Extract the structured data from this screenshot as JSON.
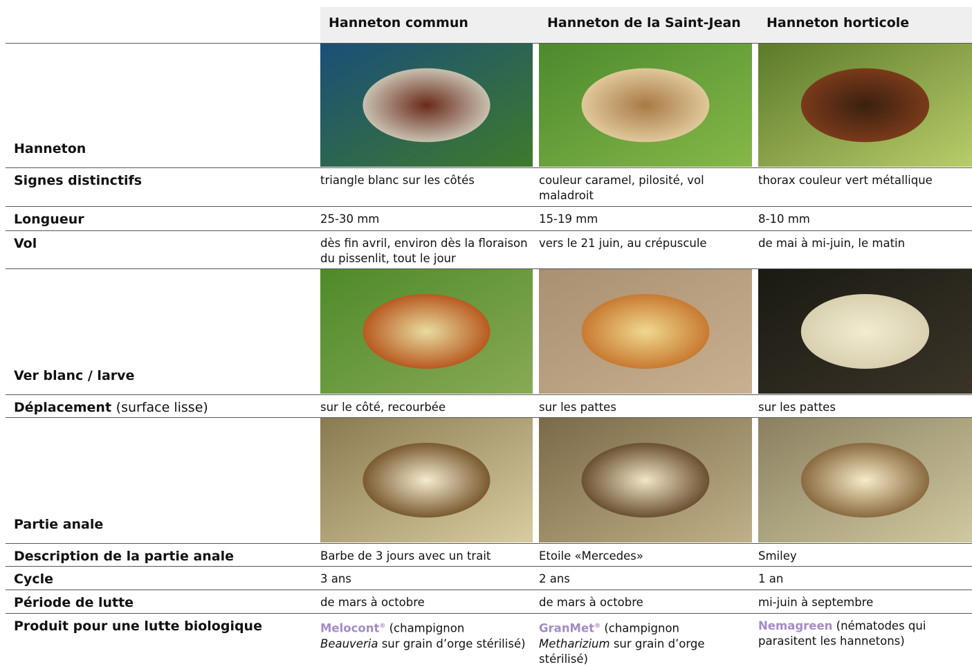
{
  "header": {
    "columns": [
      "Hanneton commun",
      "Hanneton de la Saint-Jean",
      "Hanneton horticole"
    ]
  },
  "rows": [
    {
      "label": "Hanneton"
    },
    {
      "label": "Signes distinctifs",
      "cells": [
        "triangle blanc sur les côtés",
        "couleur caramel, pilosité, vol maladroit",
        "thorax couleur vert métallique"
      ]
    },
    {
      "label": "Longueur",
      "cells": [
        "25-30 mm",
        "15-19 mm",
        "8-10 mm"
      ]
    },
    {
      "label": "Vol",
      "cells": [
        "dès fin avril, environ dès la floraison du pissenlit, tout le jour",
        "vers le 21 juin, au crépuscule",
        "de mai à mi-juin, le matin"
      ]
    },
    {
      "label": "Ver blanc / larve"
    },
    {
      "label": "Déplacement",
      "label_note": "(surface lisse)",
      "cells": [
        "sur le côté, recourbée",
        "sur les pattes",
        "sur les pattes"
      ]
    },
    {
      "label": "Partie anale"
    },
    {
      "label": "Description de la partie anale",
      "cells": [
        "Barbe de 3 jours avec un trait",
        "Etoile «Mercedes»",
        "Smiley"
      ]
    },
    {
      "label": "Cycle",
      "cells": [
        "3 ans",
        "2 ans",
        "1 an"
      ]
    },
    {
      "label": "Période de lutte",
      "cells": [
        "de mars à octobre",
        "de mars à octobre",
        "mi-juin à septembre"
      ]
    },
    {
      "label": "Produit pour une lutte biologique",
      "products": [
        {
          "name": "Melocont",
          "mark": "®",
          "text": "(champignon",
          "italic": "Beauveria",
          "rest": "sur grain d’orge stérilisé)"
        },
        {
          "name": "GranMet",
          "mark": "®",
          "text": "(champignon",
          "italic": "Metharizium",
          "rest": "sur grain d’orge stérilisé)"
        },
        {
          "name": "Nemagreen",
          "text": "(nématodes qui parasitent les hannetons)"
        }
      ]
    }
  ]
}
